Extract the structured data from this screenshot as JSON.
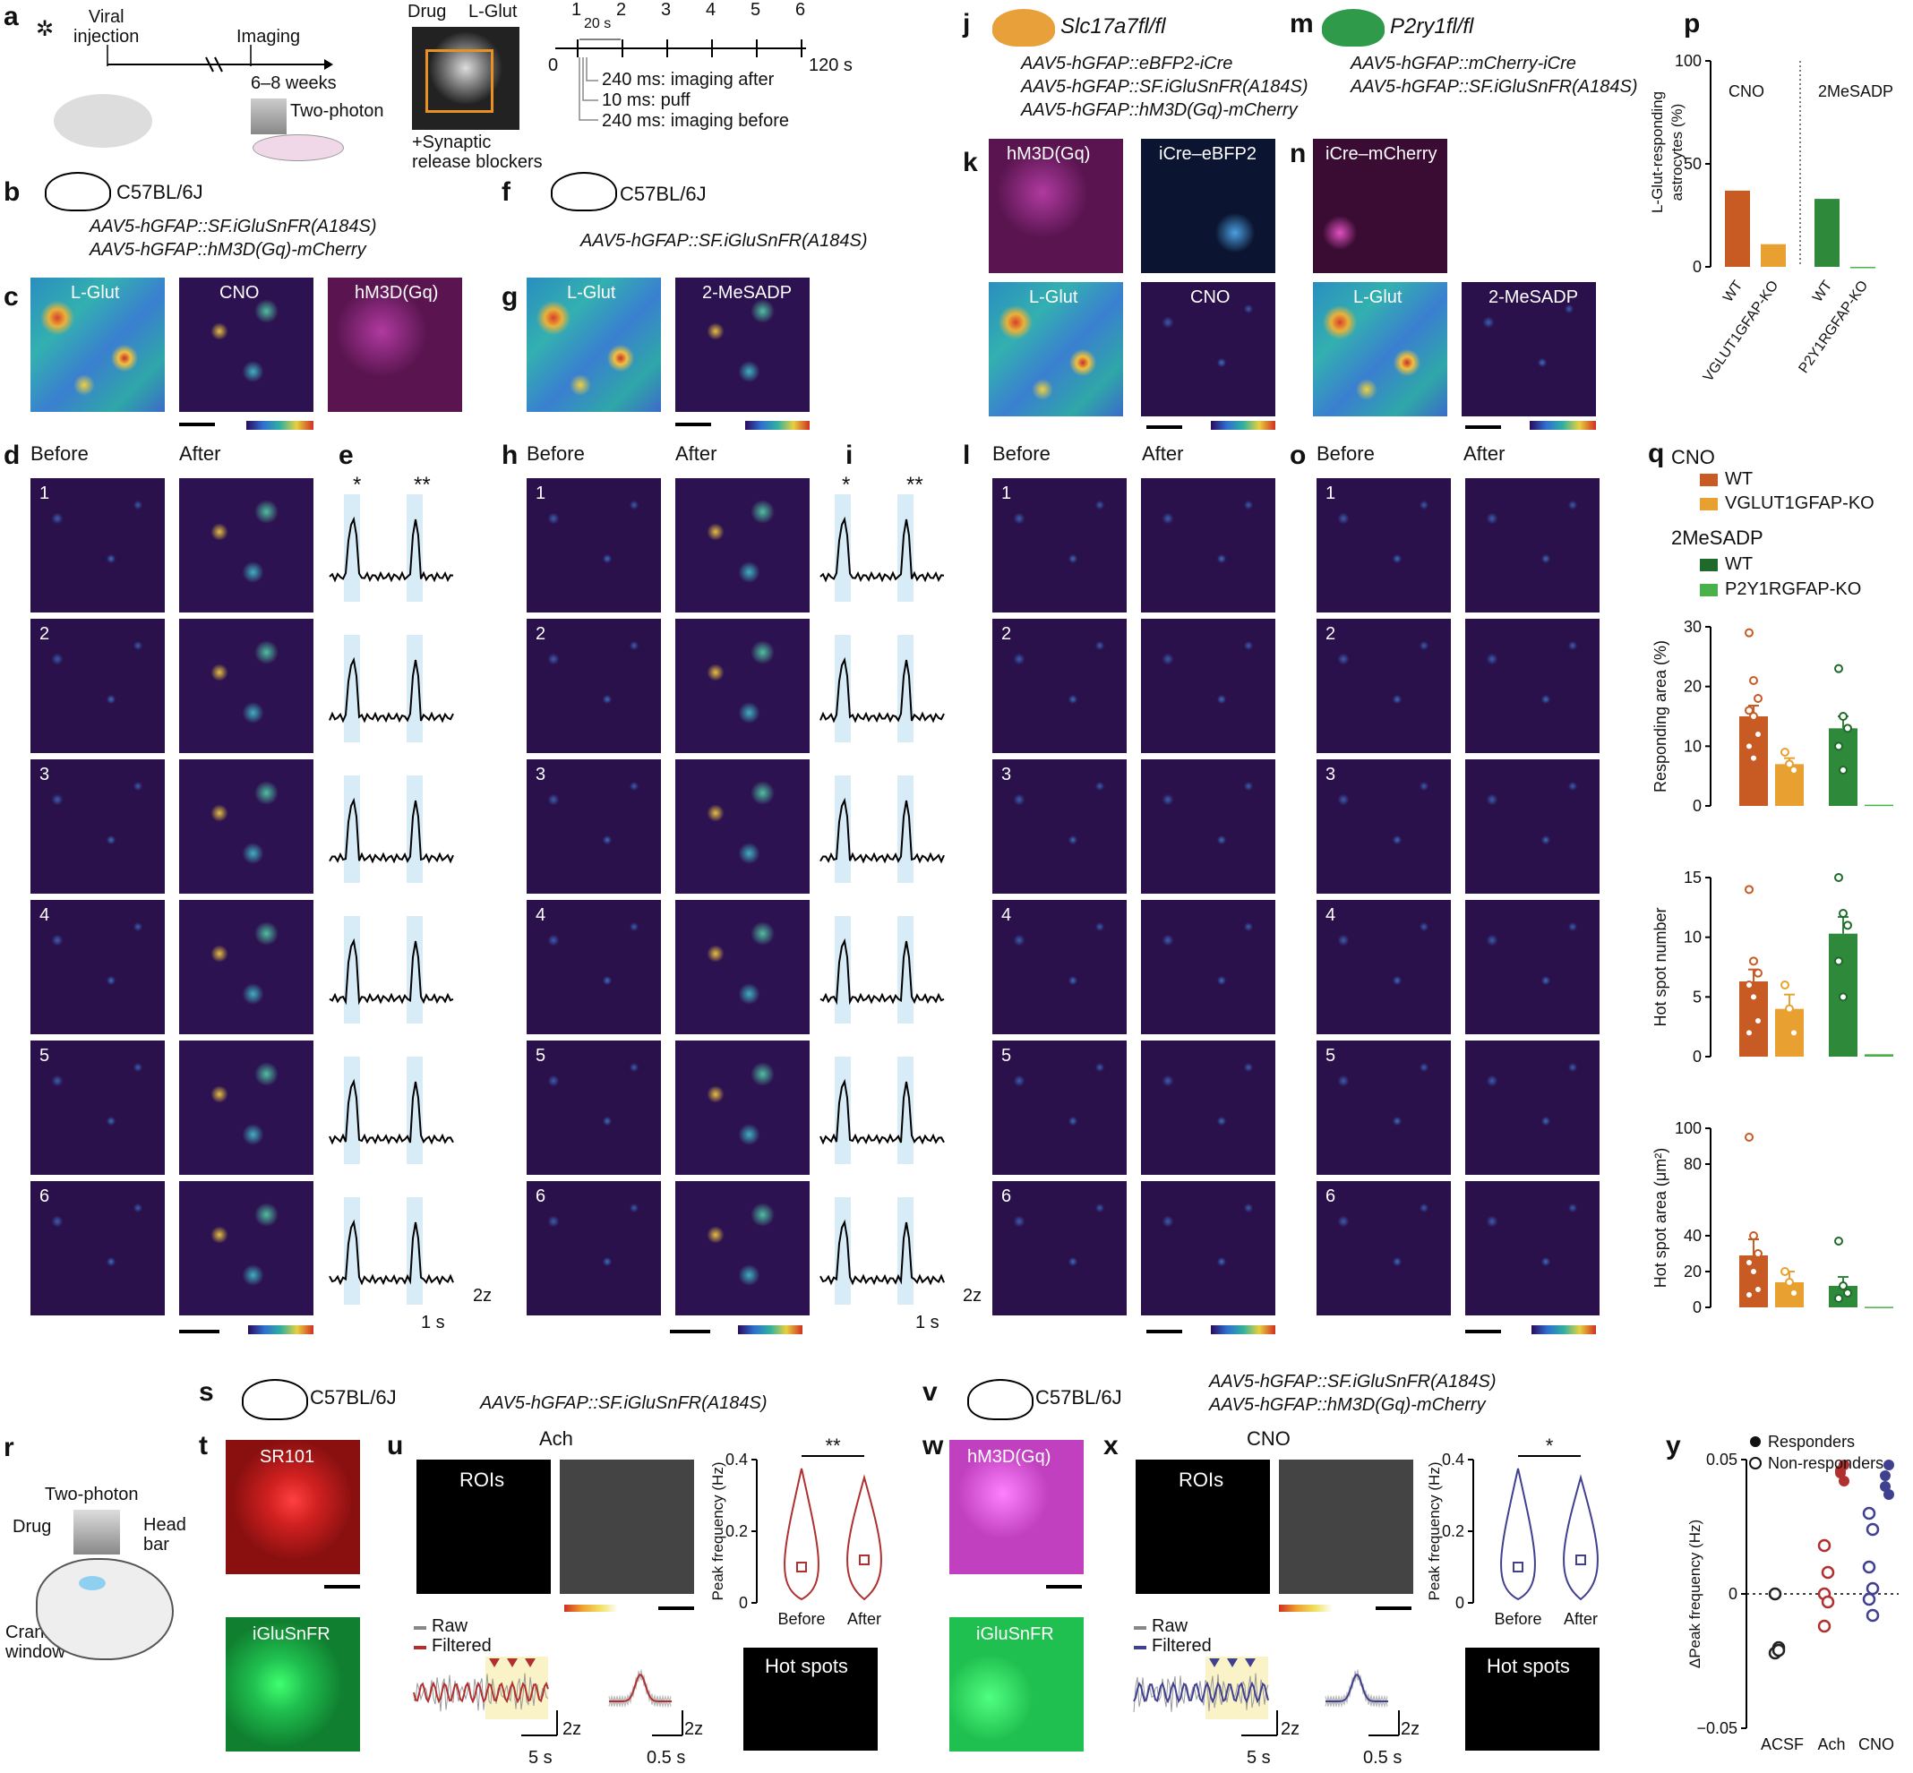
{
  "panels": {
    "a": {
      "letter": "a",
      "viral_injection": "Viral\ninjection",
      "imaging": "Imaging",
      "weeks": "6–8 weeks",
      "two_photon": "Two-photon",
      "drug": "Drug",
      "lglut": "L-Glut",
      "synaptic": "+Synaptic\nrelease blockers",
      "timeline_ticks": [
        "1",
        "2",
        "3",
        "4",
        "5",
        "6"
      ],
      "t0": "0",
      "t20": "20 s",
      "t120": "120 s",
      "after": "240 ms: imaging after",
      "puff": "10 ms: puff",
      "before": "240 ms: imaging before"
    },
    "b": {
      "letter": "b",
      "strain": "C57BL/6J",
      "vec1": "AAV5-hGFAP::SF.iGluSnFR(A184S)",
      "vec2": "AAV5-hGFAP::hM3D(Gq)-mCherry"
    },
    "c": {
      "letter": "c",
      "t1": "L-Glut",
      "t2": "CNO",
      "t3": "hM3D(Gq)"
    },
    "d": {
      "letter": "d",
      "before": "Before",
      "after": "After",
      "rows": [
        "1",
        "2",
        "3",
        "4",
        "5",
        "6"
      ]
    },
    "e": {
      "letter": "e",
      "s1": "*",
      "s2": "**",
      "zscale": "2z",
      "tscale": "1 s"
    },
    "f": {
      "letter": "f",
      "strain": "C57BL/6J",
      "vec1": "AAV5-hGFAP::SF.iGluSnFR(A184S)"
    },
    "g": {
      "letter": "g",
      "t1": "L-Glut",
      "t2": "2-MeSADP"
    },
    "h": {
      "letter": "h",
      "before": "Before",
      "after": "After",
      "rows": [
        "1",
        "2",
        "3",
        "4",
        "5",
        "6"
      ]
    },
    "i": {
      "letter": "i",
      "s1": "*",
      "s2": "**",
      "zscale": "2z",
      "tscale": "1 s"
    },
    "j": {
      "letter": "j",
      "strain": "Slc17a7fl/fl",
      "vec1": "AAV5-hGFAP::eBFP2-iCre",
      "vec2": "AAV5-hGFAP::SF.iGluSnFR(A184S)",
      "vec3": "AAV5-hGFAP::hM3D(Gq)-mCherry"
    },
    "k": {
      "letter": "k",
      "t1": "hM3D(Gq)",
      "t2": "iCre–eBFP2",
      "t3": "L-Glut",
      "t4": "CNO"
    },
    "l": {
      "letter": "l",
      "before": "Before",
      "after": "After",
      "rows": [
        "1",
        "2",
        "3",
        "4",
        "5",
        "6"
      ]
    },
    "m": {
      "letter": "m",
      "strain": "P2ry1fl/fl",
      "vec1": "AAV5-hGFAP::mCherry-iCre",
      "vec2": "AAV5-hGFAP::SF.iGluSnFR(A184S)"
    },
    "n": {
      "letter": "n",
      "t1": "iCre–mCherry",
      "t3": "L-Glut",
      "t4": "2-MeSADP"
    },
    "o": {
      "letter": "o",
      "before": "Before",
      "after": "After",
      "rows": [
        "1",
        "2",
        "3",
        "4",
        "5",
        "6"
      ]
    },
    "p": {
      "letter": "p",
      "cno": "CNO",
      "mesadp": "2MeSADP",
      "ylabel": "L-Glut-responding\nastrocytes (%)",
      "yticks": [
        "0",
        "50",
        "100"
      ],
      "xlabels": [
        "WT",
        "VGLUT1GFAP-KO",
        "WT",
        "P2Y1RGFAP-KO"
      ]
    },
    "q": {
      "letter": "q",
      "cno": "CNO",
      "wt": "WT",
      "ko1": "VGLUT1GFAP-KO",
      "mesadp": "2MeSADP",
      "ko2": "P2Y1RGFAP-KO",
      "y1": "Responding area (%)",
      "y1ticks": [
        "0",
        "10",
        "20",
        "30"
      ],
      "y2": "Hot spot number",
      "y2ticks": [
        "0",
        "5",
        "10",
        "15"
      ],
      "y3": "Hot spot area (μm²)",
      "y3ticks": [
        "0",
        "20",
        "40",
        "80",
        "100"
      ]
    },
    "r": {
      "letter": "r",
      "two_photon": "Two-photon",
      "drug": "Drug",
      "head_bar": "Head\nbar",
      "cranial": "Cranial\nwindow"
    },
    "s": {
      "letter": "s",
      "strain": "C57BL/6J",
      "vec1": "AAV5-hGFAP::SF.iGluSnFR(A184S)"
    },
    "t": {
      "letter": "t",
      "t1": "SR101",
      "t2": "iGluSnFR"
    },
    "u": {
      "letter": "u",
      "title": "Ach",
      "rois": "ROIs",
      "raw": "Raw",
      "filtered": "Filtered",
      "z1": "2z",
      "s1": "5 s",
      "z2": "2z",
      "s2": "0.5 s",
      "ylabel": "Peak frequency (Hz)",
      "yticks": [
        "0",
        "0.2",
        "0.4"
      ],
      "sig": "**",
      "xlabels": [
        "Before",
        "After"
      ],
      "hotspots": "Hot spots"
    },
    "v": {
      "letter": "v",
      "strain": "C57BL/6J",
      "vec1": "AAV5-hGFAP::SF.iGluSnFR(A184S)",
      "vec2": "AAV5-hGFAP::hM3D(Gq)-mCherry"
    },
    "w": {
      "letter": "w",
      "t1": "hM3D(Gq)",
      "t2": "iGluSnFR"
    },
    "x": {
      "letter": "x",
      "title": "CNO",
      "rois": "ROIs",
      "raw": "Raw",
      "filtered": "Filtered",
      "z1": "2z",
      "s1": "5 s",
      "z2": "2z",
      "s2": "0.5 s",
      "ylabel": "Peak frequency (Hz)",
      "yticks": [
        "0",
        "0.2",
        "0.4"
      ],
      "sig": "*",
      "xlabels": [
        "Before",
        "After"
      ],
      "hotspots": "Hot spots"
    },
    "y": {
      "letter": "y",
      "responders": "Responders",
      "nonresponders": "Non-responders",
      "ylabel": "ΔPeak frequency (Hz)",
      "yticks": [
        "−0.05",
        "0",
        "0.05"
      ],
      "xlabels": [
        "ACSF",
        "Ach",
        "CNO"
      ]
    }
  },
  "chart_data": [
    {
      "type": "bar",
      "panel": "p",
      "categories": [
        "WT (CNO)",
        "VGLUT1GFAP-KO (CNO)",
        "WT (2MeSADP)",
        "P2Y1RGFAP-KO (2MeSADP)"
      ],
      "values": [
        37,
        11,
        33,
        0
      ],
      "ylim": [
        0,
        100
      ],
      "colors": [
        "#c85a24",
        "#e8a030",
        "#2e8a3a",
        "#4ab04a"
      ]
    },
    {
      "type": "bar",
      "panel": "q-responding-area",
      "categories": [
        "WT",
        "VGLUT1GFAP-KO",
        "WT",
        "P2Y1RGFAP-KO"
      ],
      "values": [
        15,
        7,
        13,
        0.2
      ],
      "errors": [
        1.8,
        1,
        2,
        0
      ],
      "ylim": [
        0,
        30
      ],
      "points": [
        [
          29,
          21,
          18,
          16,
          15,
          12,
          10,
          8
        ],
        [
          9,
          7,
          6
        ],
        [
          23,
          15,
          13,
          10,
          6
        ],
        []
      ]
    },
    {
      "type": "bar",
      "panel": "q-hotspot-number",
      "categories": [
        "WT",
        "VGLUT1GFAP-KO",
        "WT",
        "P2Y1RGFAP-KO"
      ],
      "values": [
        6.3,
        4,
        10.3,
        0.2
      ],
      "errors": [
        1,
        1.2,
        1.4,
        0
      ],
      "ylim": [
        0,
        15
      ],
      "points": [
        [
          14,
          8,
          7,
          6,
          5,
          3,
          2
        ],
        [
          6,
          4,
          2
        ],
        [
          15,
          12,
          11,
          8,
          5
        ],
        []
      ]
    },
    {
      "type": "bar",
      "panel": "q-hotspot-area",
      "categories": [
        "WT",
        "VGLUT1GFAP-KO",
        "WT",
        "P2Y1RGFAP-KO"
      ],
      "values": [
        29,
        14,
        12,
        0.3
      ],
      "errors": [
        9,
        6,
        5,
        0
      ],
      "ylim": [
        0,
        100
      ],
      "points": [
        [
          95,
          40,
          30,
          25,
          20,
          10,
          7
        ],
        [
          20,
          14,
          8
        ],
        [
          37,
          12,
          8,
          5
        ],
        []
      ]
    },
    {
      "type": "scatter",
      "panel": "y",
      "categories": [
        "ACSF",
        "Ach",
        "CNO"
      ],
      "responders": [
        [],
        [
          0.045,
          0.042,
          0.046,
          0.048
        ],
        [
          0.04,
          0.037,
          0.044,
          0.048
        ]
      ],
      "nonresponders": [
        [
          0,
          -0.02,
          -0.022,
          -0.021
        ],
        [
          0.018,
          0.008,
          0,
          -0.003,
          -0.012
        ],
        [
          0.03,
          0.024,
          0.01,
          0.002,
          -0.002,
          -0.008
        ]
      ],
      "ylim": [
        -0.05,
        0.05
      ]
    }
  ]
}
